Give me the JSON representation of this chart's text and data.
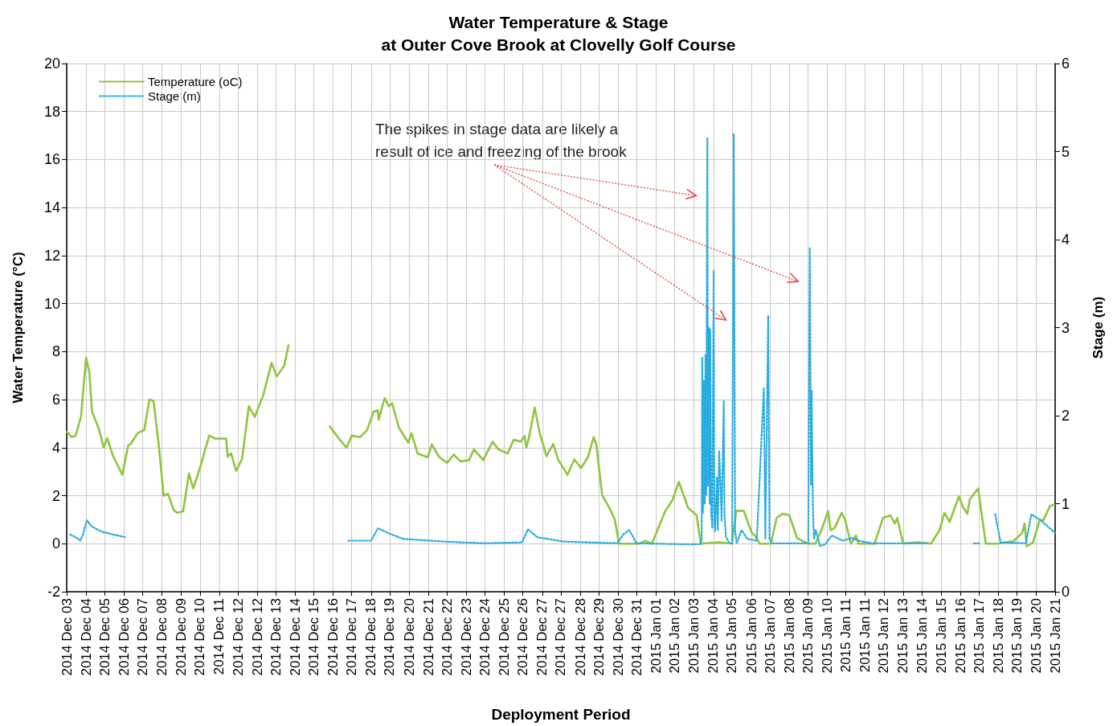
{
  "chart_data": {
    "type": "line",
    "title": "Water Temperature & Stage",
    "subtitle": "at Outer Cove Brook at Clovelly Golf Course",
    "xlabel": "Deployment Period",
    "ylabel": "Water Temperature (°C)",
    "y2label": "Stage (m)",
    "annotations": [
      "The spikes in stage data are likely a result of ice and freezing of the brook"
    ],
    "xlim": [
      "2014-12-03T13:00",
      "2015-01-21T09:11"
    ],
    "xticks": [
      {
        "value": "2014-12-03T13:00",
        "label": "2014 Dec 03"
      },
      {
        "value": "2014-12-04T12:00",
        "label": "2014 Dec 04"
      },
      {
        "value": "2014-12-05T10:00",
        "label": "2014 Dec 05"
      },
      {
        "value": "2014-12-06T09:00",
        "label": "2014 Dec 06"
      },
      {
        "value": "2014-12-07T07:00",
        "label": "2014 Dec 07"
      },
      {
        "value": "2014-12-08T06:00",
        "label": "2014 Dec 08"
      },
      {
        "value": "2014-12-09T05:00",
        "label": "2014 Dec 09"
      },
      {
        "value": "2014-12-10T03:00",
        "label": "2014 Dec 10"
      },
      {
        "value": "2014-12-11T02:00",
        "label": "2014 Dec 11"
      },
      {
        "value": "2014-12-12T00:10",
        "label": "2014 Dec 12"
      },
      {
        "value": "2014-12-12T23:00",
        "label": "2014 Dec 12"
      },
      {
        "value": "2014-12-13T21:00",
        "label": "2014 Dec 13"
      },
      {
        "value": "2014-12-14T20:00",
        "label": "2014 Dec 14"
      },
      {
        "value": "2014-12-15T18:00",
        "label": "2014 Dec 15"
      },
      {
        "value": "2014-12-16T17:00",
        "label": "2014 Dec 16"
      },
      {
        "value": "2014-12-17T15:00",
        "label": "2014 Dec 17"
      },
      {
        "value": "2014-12-18T14:00",
        "label": "2014 Dec 18"
      },
      {
        "value": "2014-12-19T12:00",
        "label": "2014 Dec 19"
      },
      {
        "value": "2014-12-20T11:00",
        "label": "2014 Dec 20"
      },
      {
        "value": "2014-12-21T10:00",
        "label": "2014 Dec 21"
      },
      {
        "value": "2014-12-22T08:00",
        "label": "2014 Dec 22"
      },
      {
        "value": "2014-12-23T07:00",
        "label": "2014 Dec 23"
      },
      {
        "value": "2014-12-24T05:00",
        "label": "2014 Dec 24"
      },
      {
        "value": "2014-12-25T04:00",
        "label": "2014 Dec 25"
      },
      {
        "value": "2014-12-26T02:00",
        "label": "2014 Dec 26"
      },
      {
        "value": "2014-12-27T01:00",
        "label": "2014 Dec 27"
      },
      {
        "value": "2014-12-27T23:00",
        "label": "2014 Dec 27"
      },
      {
        "value": "2014-12-28T22:00",
        "label": "2014 Dec 28"
      },
      {
        "value": "2014-12-29T20:00",
        "label": "2014 Dec 29"
      },
      {
        "value": "2014-12-30T19:00",
        "label": "2014 Dec 30"
      },
      {
        "value": "2014-12-31T17:00",
        "label": "2014 Dec 31"
      },
      {
        "value": "2015-01-01T16:00",
        "label": "2015 Jan 01"
      },
      {
        "value": "2015-01-02T14:00",
        "label": "2015 Jan 02"
      },
      {
        "value": "2015-01-03T13:00",
        "label": "2015 Jan 03"
      },
      {
        "value": "2015-01-04T12:00",
        "label": "2015 Jan 04"
      },
      {
        "value": "2015-01-05T10:00",
        "label": "2015 Jan 05"
      },
      {
        "value": "2015-01-06T09:00",
        "label": "2015 Jan 06"
      },
      {
        "value": "2015-01-07T07:00",
        "label": "2015 Jan 07"
      },
      {
        "value": "2015-01-08T06:00",
        "label": "2015 Jan 08"
      },
      {
        "value": "2015-01-09T04:00",
        "label": "2015 Jan 09"
      },
      {
        "value": "2015-01-10T03:00",
        "label": "2015 Jan 10"
      },
      {
        "value": "2015-01-11T01:00",
        "label": "2015 Jan 11"
      },
      {
        "value": "2015-01-11T23:50",
        "label": "2015 Jan 11"
      },
      {
        "value": "2015-01-12T22:00",
        "label": "2015 Jan 12"
      },
      {
        "value": "2015-01-13T21:00",
        "label": "2015 Jan 13"
      },
      {
        "value": "2015-01-14T19:00",
        "label": "2015 Jan 14"
      },
      {
        "value": "2015-01-15T18:00",
        "label": "2015 Jan 15"
      },
      {
        "value": "2015-01-16T17:00",
        "label": "2015 Jan 16"
      },
      {
        "value": "2015-01-17T15:00",
        "label": "2015 Jan 17"
      },
      {
        "value": "2015-01-18T14:00",
        "label": "2015 Jan 18"
      },
      {
        "value": "2015-01-19T12:00",
        "label": "2015 Jan 19"
      },
      {
        "value": "2015-01-20T11:00",
        "label": "2015 Jan 20"
      },
      {
        "value": "2015-01-21T09:11",
        "label": "2015 Jan 21"
      }
    ],
    "ylim": [
      -2,
      20
    ],
    "yticks": [
      -2,
      0,
      2,
      4,
      6,
      8,
      10,
      12,
      14,
      16,
      18,
      20
    ],
    "y2lim": [
      0,
      6
    ],
    "y2ticks": [
      0,
      1,
      2,
      3,
      4,
      5,
      6
    ],
    "grid": true,
    "legend": "top left",
    "marker": "none",
    "series": [
      {
        "name": "Temperature (oC)",
        "color": "#8dc63f",
        "line_style": "solid",
        "x": [
          "2014-12-03T13:00",
          "2014-12-03T19:00",
          "2014-12-03T23:40",
          "2014-12-04T06:00",
          "2014-12-04T12:00",
          "2014-12-04T16:00",
          "2014-12-04T19:00",
          "2014-12-05T03:00",
          "2014-12-05T09:00",
          "2014-12-05T13:00",
          "2014-12-05T20:00",
          "2014-12-06T07:00",
          "2014-12-06T14:00",
          "2014-12-06T17:00",
          "2014-12-07T01:00",
          "2014-12-07T09:00",
          "2014-12-07T15:00",
          "2014-12-07T20:00",
          "2014-12-08T02:00",
          "2014-12-08T08:00",
          "2014-12-08T13:00",
          "2014-12-08T20:00",
          "2014-12-09T00:00",
          "2014-12-09T07:00",
          "2014-12-09T14:00",
          "2014-12-09T19:00",
          "2014-12-10T03:00",
          "2014-12-10T14:00",
          "2014-12-10T21:00",
          "2014-12-11T10:00",
          "2014-12-11T12:00",
          "2014-12-11T16:00",
          "2014-12-11T22:00",
          "2014-12-12T05:00",
          "2014-12-12T13:00",
          "2014-12-12T20:00",
          "2014-12-13T06:00",
          "2014-12-13T16:00",
          "2014-12-13T22:00",
          "2014-12-14T07:00",
          "2014-12-14T12:00",
          "2014-12-15T12:00",
          "2014-12-16T13:00",
          "2014-12-16T23:45",
          "2014-12-17T09:00",
          "2014-12-17T15:00",
          "2014-12-18T01:00",
          "2014-12-18T09:00",
          "2014-12-18T17:00",
          "2014-12-18T22:00",
          "2014-12-18T23:00",
          "2014-12-19T06:00",
          "2014-12-19T11:00",
          "2014-12-19T15:00",
          "2014-12-19T23:00",
          "2014-12-20T10:00",
          "2014-12-20T14:00",
          "2014-12-20T21:00",
          "2014-12-21T09:00",
          "2014-12-21T14:00",
          "2014-12-21T23:00",
          "2014-12-22T08:00",
          "2014-12-22T16:00",
          "2014-12-23T00:00",
          "2014-12-23T10:00",
          "2014-12-23T16:00",
          "2014-12-24T03:00",
          "2014-12-24T14:00",
          "2014-12-24T21:00",
          "2014-12-25T08:00",
          "2014-12-25T15:00",
          "2014-12-25T23:30",
          "2014-12-26T04:00",
          "2014-12-26T06:00",
          "2014-12-26T09:00",
          "2014-12-26T16:00",
          "2014-12-26T22:00",
          "2014-12-27T06:00",
          "2014-12-27T14:00",
          "2014-12-27T20:00",
          "2014-12-28T07:00",
          "2014-12-28T15:00",
          "2014-12-28T23:00",
          "2014-12-29T07:00",
          "2014-12-29T14:00",
          "2014-12-29T17:00",
          "2014-12-30T00:00",
          "2014-12-30T09:00",
          "2014-12-30T15:00",
          "2014-12-30T20:00",
          "2014-12-31T20:00",
          "2015-01-01T03:00",
          "2015-01-01T11:00",
          "2015-01-02T03:00",
          "2015-01-02T11:00",
          "2015-01-02T19:00",
          "2015-01-03T06:00",
          "2015-01-03T16:00",
          "2015-01-03T21:00",
          "2015-01-04T19:00",
          "2015-01-05T10:00",
          "2015-01-05T15:00",
          "2015-01-06T00:00",
          "2015-01-06T09:00",
          "2015-01-06T14:00",
          "2015-01-06T19:00",
          "2015-01-07T08:00",
          "2015-01-07T15:00",
          "2015-01-07T22:00",
          "2015-01-08T06:00",
          "2015-01-08T15:00",
          "2015-01-09T04:00",
          "2015-01-09T13:00",
          "2015-01-09T20:00",
          "2015-01-10T04:00",
          "2015-01-10T07:00",
          "2015-01-10T12:00",
          "2015-01-10T20:00",
          "2015-01-11T00:00",
          "2015-01-11T07:00",
          "2015-01-11T13:00",
          "2015-01-11T16:00",
          "2015-01-12T11:00",
          "2015-01-12T21:00",
          "2015-01-13T06:00",
          "2015-01-13T11:00",
          "2015-01-13T14:00",
          "2015-01-13T21:00",
          "2015-01-14T14:00",
          "2015-01-15T06:00",
          "2015-01-15T16:00",
          "2015-01-15T22:00",
          "2015-01-16T04:00",
          "2015-01-16T15:00",
          "2015-01-16T20:00",
          "2015-01-17T01:00",
          "2015-01-17T04:00",
          "2015-01-17T14:00",
          "2015-01-17T18:00",
          "2015-01-17T23:00",
          "2015-01-18T13:00",
          "2015-01-19T08:00",
          "2015-01-19T18:00",
          "2015-01-19T21:00",
          "2015-01-19T23:30",
          "2015-01-20T07:00",
          "2015-01-20T15:00",
          "2015-01-20T19:00",
          "2015-01-21T03:00",
          "2015-01-21T08:00"
        ],
        "values": [
          4.66,
          4.44,
          4.5,
          5.3,
          7.75,
          7.1,
          5.5,
          4.8,
          4.0,
          4.4,
          3.65,
          2.87,
          4.1,
          4.16,
          4.6,
          4.74,
          6.0,
          5.95,
          4.16,
          2.0,
          2.08,
          1.4,
          1.29,
          1.35,
          2.92,
          2.3,
          3.15,
          4.5,
          4.38,
          4.38,
          3.62,
          3.76,
          3.03,
          3.54,
          5.73,
          5.28,
          6.18,
          7.53,
          6.97,
          7.42,
          8.26,
          null,
          4.89,
          4.38,
          4.0,
          4.5,
          4.44,
          4.72,
          5.5,
          5.56,
          5.17,
          6.07,
          5.73,
          5.84,
          4.83,
          4.21,
          4.6,
          3.76,
          3.6,
          4.13,
          3.6,
          3.37,
          3.71,
          3.43,
          3.48,
          3.93,
          3.48,
          4.25,
          3.93,
          3.76,
          4.33,
          4.25,
          4.49,
          4.0,
          4.38,
          5.67,
          4.6,
          3.65,
          4.16,
          3.48,
          2.87,
          3.51,
          3.15,
          3.6,
          4.44,
          4.16,
          2.02,
          1.46,
          1.01,
          0,
          0,
          0.12,
          0,
          1.37,
          1.79,
          2.57,
          1.49,
          1.19,
          0,
          0.06,
          0,
          1.37,
          1.37,
          0.48,
          0.3,
          0,
          0,
          1.08,
          1.25,
          1.19,
          0.24,
          0,
          0,
          0.56,
          1.35,
          0.56,
          0.67,
          1.29,
          1.01,
          0,
          0.34,
          0,
          0,
          1.07,
          1.18,
          0.84,
          1.07,
          0,
          0.06,
          0,
          0.56,
          1.29,
          0.9,
          1.97,
          1.52,
          1.24,
          1.85,
          2.3,
          1.24,
          0,
          0,
          0.11,
          0.45,
          0.84,
          -0.11,
          0.06,
          1.01,
          0.96,
          1.57,
          1.63
        ]
      },
      {
        "name": "Stage (m)",
        "color": "#29abe2",
        "axis": "y2",
        "line_style": "dotted",
        "x": [
          "2014-12-03T17:00",
          "2014-12-03T23:40",
          "2014-12-04T05:00",
          "2014-12-04T08:00",
          "2014-12-04T13:00",
          "2014-12-04T19:00",
          "2014-12-05T07:00",
          "2014-12-05T20:00",
          "2014-12-06T10:30",
          "2014-12-12T00:00",
          "2014-12-17T11:00",
          "2014-12-18T14:00",
          "2014-12-18T22:00",
          "2014-12-19T12:00",
          "2014-12-20T04:00",
          "2014-12-22T04:00",
          "2014-12-24T03:00",
          "2014-12-26T01:00",
          "2014-12-26T08:00",
          "2014-12-26T19:00",
          "2014-12-28T02:00",
          "2014-12-29T10:00",
          "2014-12-30T18:00",
          "2014-12-31T01:00",
          "2014-12-31T08:00",
          "2014-12-31T13:00",
          "2014-12-31T16:30",
          "2015-01-02T23:00",
          "2015-01-03T21:00",
          "2015-01-03T22:01",
          "2015-01-03T22:42",
          "2015-01-03T23:36",
          "2015-01-04T00:44",
          "2015-01-04T01:38",
          "2015-01-04T02:32",
          "2015-01-04T03:26",
          "2015-01-04T04:20",
          "2015-01-04T04:47",
          "2015-01-04T05:28",
          "2015-01-04T06:35",
          "2015-01-04T07:29",
          "2015-01-04T08:10",
          "2015-01-04T09:17",
          "2015-01-04T10:39",
          "2015-01-04T12:13",
          "2015-01-04T13:07",
          "2015-01-04T14:01",
          "2015-01-04T16:03",
          "2015-01-04T17:11",
          "2015-01-04T18:45",
          "2015-01-04T20:07",
          "2015-01-04T21:41",
          "2015-01-05T00:10",
          "2015-01-05T01:04",
          "2015-01-05T02:39",
          "2015-01-05T06:55",
          "2015-01-05T10:05",
          "2015-01-05T12:06",
          "2015-01-05T13:41",
          "2015-01-05T15:29",
          "2015-01-05T21:21",
          "2015-01-06T04:07",
          "2015-01-06T15:23",
          "2015-01-06T23:43",
          "2015-01-07T01:31",
          "2015-01-07T04:54",
          "2015-01-07T06:28",
          "2015-01-07T09:51",
          "2015-01-09T04:25",
          "2015-01-09T06:14",
          "2015-01-09T07:48",
          "2015-01-09T08:29",
          "2015-01-09T09:50",
          "2015-01-09T11:11",
          "2015-01-09T13:26",
          "2015-01-09T18:10",
          "2015-01-10T00:29",
          "2015-01-10T08:22",
          "2015-01-10T21:13",
          "2015-01-11T08:15",
          "2015-01-11T16:09",
          "2015-01-12T08:09",
          "2015-01-15T01:03",
          "2015-01-16T05:15",
          "2015-01-17T08:44",
          "2015-01-17T15:03",
          "2015-01-18T00:04",
          "2015-01-18T10:12",
          "2015-01-18T16:31",
          "2015-01-19T22:29",
          "2015-01-20T05:01",
          "2015-01-20T16:04",
          "2015-01-21T09:00"
        ],
        "values": [
          0.65,
          0.62,
          0.58,
          0.64,
          0.81,
          0.74,
          0.68,
          0.65,
          0.62,
          null,
          0.58,
          0.58,
          0.72,
          0.66,
          0.6,
          0.57,
          0.55,
          0.56,
          0.71,
          0.62,
          0.57,
          0.56,
          0.55,
          0.65,
          0.7,
          0.62,
          0.55,
          0.54,
          0.54,
          0.6,
          2.66,
          0.9,
          2.4,
          1.0,
          2.7,
          1.1,
          4.2,
          5.15,
          1.2,
          3.0,
          1.0,
          2.98,
          0.9,
          0.72,
          3.65,
          0.8,
          0.69,
          1.3,
          0.7,
          1.6,
          1.28,
          0.8,
          2.17,
          0.9,
          0.63,
          0.55,
          0.55,
          5.2,
          0.7,
          0.55,
          0.7,
          0.6,
          0.58,
          2.32,
          0.6,
          3.13,
          0.6,
          0.55,
          0.55,
          3.91,
          1.21,
          2.29,
          1.0,
          0.6,
          0.7,
          0.52,
          0.54,
          0.64,
          0.58,
          0.61,
          0.58,
          0.55,
          0.55,
          null,
          0.55,
          0.55,
          null,
          0.88,
          0.56,
          0.55,
          0.88,
          0.81,
          0.67
        ]
      }
    ]
  }
}
